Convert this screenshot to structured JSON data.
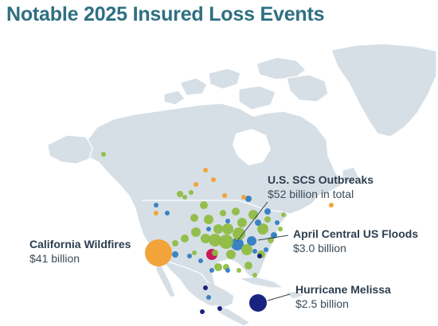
{
  "title": "Notable 2025 Insured Loss Events",
  "colors": {
    "title": "#2f6f81",
    "land": "#d6dfe6",
    "border": "#ffffff",
    "ocean": "#ffffff",
    "scs": "#8dbb3f",
    "flood": "#3a82c4",
    "wildfire": "#f2a33a",
    "tropical": "#1a237e",
    "highlight": "#c8195a"
  },
  "callouts": {
    "wildfires": {
      "name": "California Wildfires",
      "value": "$41 billion"
    },
    "scs": {
      "name": "U.S. SCS Outbreaks",
      "value": "$52 billion in total"
    },
    "floods": {
      "name": "April Central US Floods",
      "value": "$3.0 billion"
    },
    "melissa": {
      "name": "Hurricane Melissa",
      "value": "$2.5 billion"
    }
  }
}
